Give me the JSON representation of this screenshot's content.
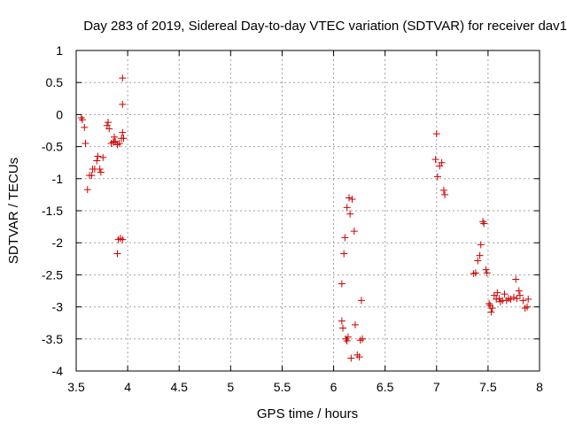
{
  "colors": {
    "marker": "#cc0000",
    "grid": "#a0a0a0",
    "axis": "#000000"
  },
  "chart_data": {
    "type": "scatter",
    "title": "Day 283 of 2019, Sidereal Day-to-day VTEC variation (SDTVAR) for receiver dav1",
    "xlabel": "GPS time / hours",
    "ylabel": "SDTVAR / TECUs",
    "xlim": [
      3.5,
      8
    ],
    "ylim": [
      -4,
      1
    ],
    "xticks": [
      3.5,
      4,
      4.5,
      5,
      5.5,
      6,
      6.5,
      7,
      7.5,
      8
    ],
    "xtick_labels": [
      "3.5",
      "4",
      "4.5",
      "5",
      "5.5",
      "6",
      "6.5",
      "7",
      "7.5",
      "8"
    ],
    "yticks": [
      1,
      0.5,
      0,
      -0.5,
      -1,
      -1.5,
      -2,
      -2.5,
      -3,
      -3.5,
      -4
    ],
    "ytick_labels": [
      "1",
      "0.5",
      "0",
      "-0.5",
      "-1",
      "-1.5",
      "-2",
      "-2.5",
      "-3",
      "-3.5",
      "-4"
    ],
    "grid": true,
    "marker": "+",
    "series": [
      {
        "name": "SDTVAR",
        "points": [
          [
            3.55,
            -0.05
          ],
          [
            3.56,
            -0.08
          ],
          [
            3.58,
            -0.2
          ],
          [
            3.59,
            -0.45
          ],
          [
            3.61,
            -1.17
          ],
          [
            3.63,
            -0.95
          ],
          [
            3.65,
            -0.95
          ],
          [
            3.66,
            -0.85
          ],
          [
            3.68,
            -0.85
          ],
          [
            3.7,
            -0.72
          ],
          [
            3.71,
            -0.65
          ],
          [
            3.73,
            -0.85
          ],
          [
            3.74,
            -0.9
          ],
          [
            3.76,
            -0.67
          ],
          [
            3.8,
            -0.17
          ],
          [
            3.81,
            -0.12
          ],
          [
            3.82,
            -0.22
          ],
          [
            3.84,
            -0.45
          ],
          [
            3.86,
            -0.43
          ],
          [
            3.87,
            -0.35
          ],
          [
            3.88,
            -0.42
          ],
          [
            3.9,
            -0.47
          ],
          [
            3.9,
            -2.17
          ],
          [
            3.91,
            -1.95
          ],
          [
            3.92,
            -0.45
          ],
          [
            3.93,
            -1.93
          ],
          [
            3.94,
            -0.37
          ],
          [
            3.95,
            -1.95
          ],
          [
            3.95,
            0.16
          ],
          [
            3.95,
            0.57
          ],
          [
            3.95,
            -0.28
          ],
          [
            3.96,
            -0.37
          ],
          [
            6.08,
            -3.22
          ],
          [
            6.08,
            -2.64
          ],
          [
            6.09,
            -3.33
          ],
          [
            6.1,
            -2.17
          ],
          [
            6.11,
            -1.92
          ],
          [
            6.12,
            -3.5
          ],
          [
            6.13,
            -1.45
          ],
          [
            6.13,
            -3.53
          ],
          [
            6.14,
            -3.47
          ],
          [
            6.15,
            -1.3
          ],
          [
            6.16,
            -1.55
          ],
          [
            6.17,
            -3.8
          ],
          [
            6.18,
            -1.32
          ],
          [
            6.2,
            -1.82
          ],
          [
            6.21,
            -3.28
          ],
          [
            6.23,
            -3.75
          ],
          [
            6.25,
            -3.78
          ],
          [
            6.26,
            -3.52
          ],
          [
            6.27,
            -2.9
          ],
          [
            6.28,
            -3.5
          ],
          [
            6.99,
            -0.7
          ],
          [
            7.0,
            -0.3
          ],
          [
            7.01,
            -0.97
          ],
          [
            7.03,
            -0.8
          ],
          [
            7.05,
            -0.75
          ],
          [
            7.07,
            -1.18
          ],
          [
            7.08,
            -1.25
          ],
          [
            7.36,
            -2.48
          ],
          [
            7.38,
            -2.47
          ],
          [
            7.4,
            -2.28
          ],
          [
            7.42,
            -2.2
          ],
          [
            7.43,
            -2.03
          ],
          [
            7.45,
            -1.67
          ],
          [
            7.46,
            -1.7
          ],
          [
            7.48,
            -2.42
          ],
          [
            7.49,
            -2.47
          ],
          [
            7.51,
            -2.95
          ],
          [
            7.52,
            -2.98
          ],
          [
            7.53,
            -3.08
          ],
          [
            7.54,
            -3.02
          ],
          [
            7.56,
            -2.82
          ],
          [
            7.58,
            -2.88
          ],
          [
            7.59,
            -2.78
          ],
          [
            7.61,
            -2.87
          ],
          [
            7.62,
            -2.92
          ],
          [
            7.64,
            -2.9
          ],
          [
            7.66,
            -2.8
          ],
          [
            7.68,
            -2.9
          ],
          [
            7.7,
            -2.87
          ],
          [
            7.72,
            -2.88
          ],
          [
            7.75,
            -2.85
          ],
          [
            7.77,
            -2.57
          ],
          [
            7.78,
            -2.87
          ],
          [
            7.8,
            -2.75
          ],
          [
            7.81,
            -2.82
          ],
          [
            7.84,
            -2.9
          ],
          [
            7.86,
            -3.02
          ],
          [
            7.88,
            -3.0
          ],
          [
            7.89,
            -2.88
          ]
        ]
      }
    ]
  }
}
